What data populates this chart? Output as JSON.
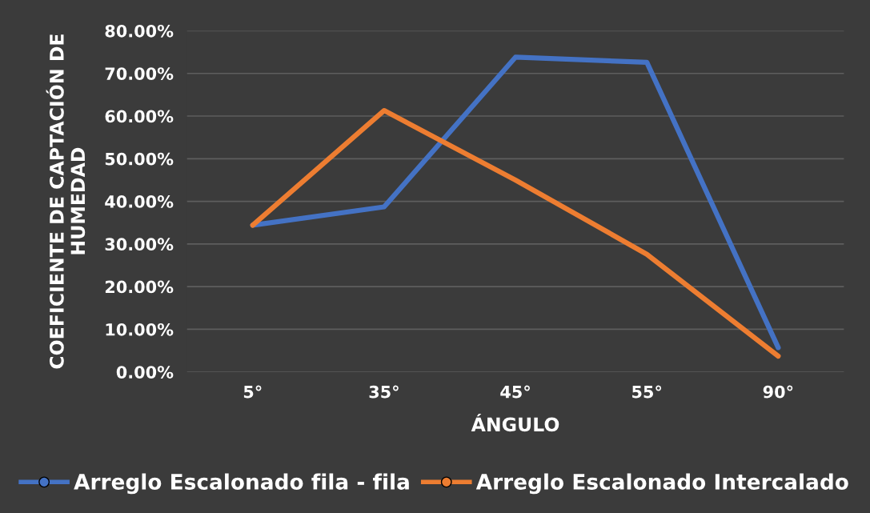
{
  "chart_data": {
    "type": "line",
    "xlabel": "ÁNGULO",
    "ylabel": "COEFICIENTE DE CAPTACIÓN DE HUMEDAD",
    "categories": [
      "5°",
      "35°",
      "45°",
      "55°",
      "90°"
    ],
    "series": [
      {
        "name": "Arreglo Escalonado fila - fila",
        "color": "#4472c4",
        "values": [
          34.4,
          38.7,
          73.8,
          72.6,
          5.7
        ]
      },
      {
        "name": "Arreglo Escalonado Intercalado",
        "color": "#ed7d31",
        "values": [
          34.4,
          61.3,
          45.0,
          27.6,
          3.7
        ]
      }
    ],
    "ylim": [
      0,
      80
    ],
    "yticks": [
      {
        "value": 0,
        "label": "0.00%"
      },
      {
        "value": 10,
        "label": "10.00%"
      },
      {
        "value": 20,
        "label": "20.00%"
      },
      {
        "value": 30,
        "label": "30.00%"
      },
      {
        "value": 40,
        "label": "40.00%"
      },
      {
        "value": 50,
        "label": "50.00%"
      },
      {
        "value": 60,
        "label": "60.00%"
      },
      {
        "value": 70,
        "label": "70.00%"
      },
      {
        "value": 80,
        "label": "80.00%"
      }
    ],
    "grid": "y",
    "legend": "bottom",
    "marker": "none",
    "line_style": "solid"
  }
}
